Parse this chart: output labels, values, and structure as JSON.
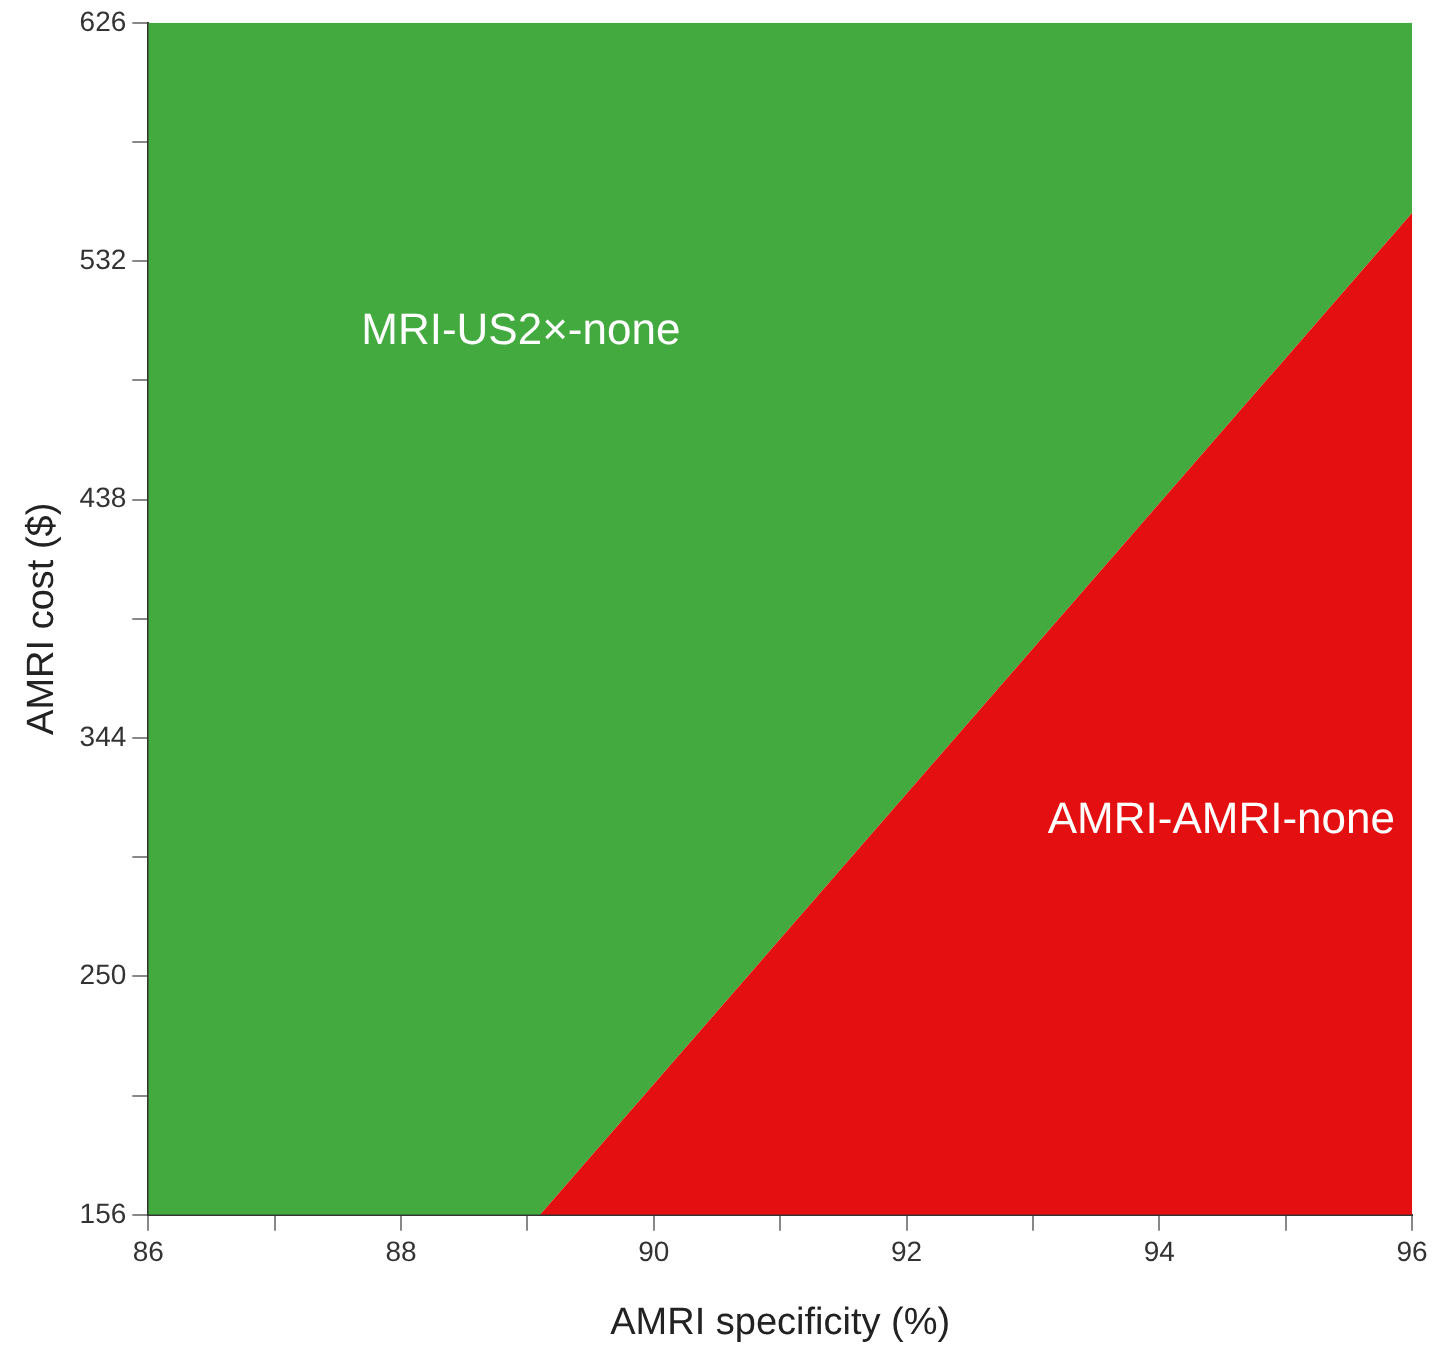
{
  "chart_data": {
    "type": "area",
    "xlabel": "AMRI specificity (%)",
    "ylabel": "AMRI cost ($)",
    "xlim": [
      86,
      96
    ],
    "ylim": [
      156,
      626
    ],
    "xticks": [
      86,
      {
        "value": 87,
        "label": null
      },
      88,
      {
        "value": 89,
        "label": null
      },
      90,
      {
        "value": 91,
        "label": null
      },
      92,
      {
        "value": 93,
        "label": null
      },
      94,
      {
        "value": 95,
        "label": null
      },
      96
    ],
    "yticks": [
      156,
      {
        "value": 203,
        "label": null
      },
      250,
      {
        "value": 297,
        "label": null
      },
      344,
      {
        "value": 391,
        "label": null
      },
      438,
      {
        "value": 485,
        "label": null
      },
      532,
      {
        "value": 579,
        "label": null
      },
      626
    ],
    "grid": false,
    "legend": false,
    "series": [
      {
        "name": "AMRI-AMRI-none",
        "color": "#e30f10",
        "x": [
          86,
          89.1,
          96
        ],
        "values": [
          156,
          156,
          551
        ]
      },
      {
        "name": "MRI-US2×-none",
        "color": "#43aa3f",
        "x": [
          86,
          89.1,
          96
        ],
        "values": [
          626,
          626,
          626
        ]
      }
    ]
  }
}
